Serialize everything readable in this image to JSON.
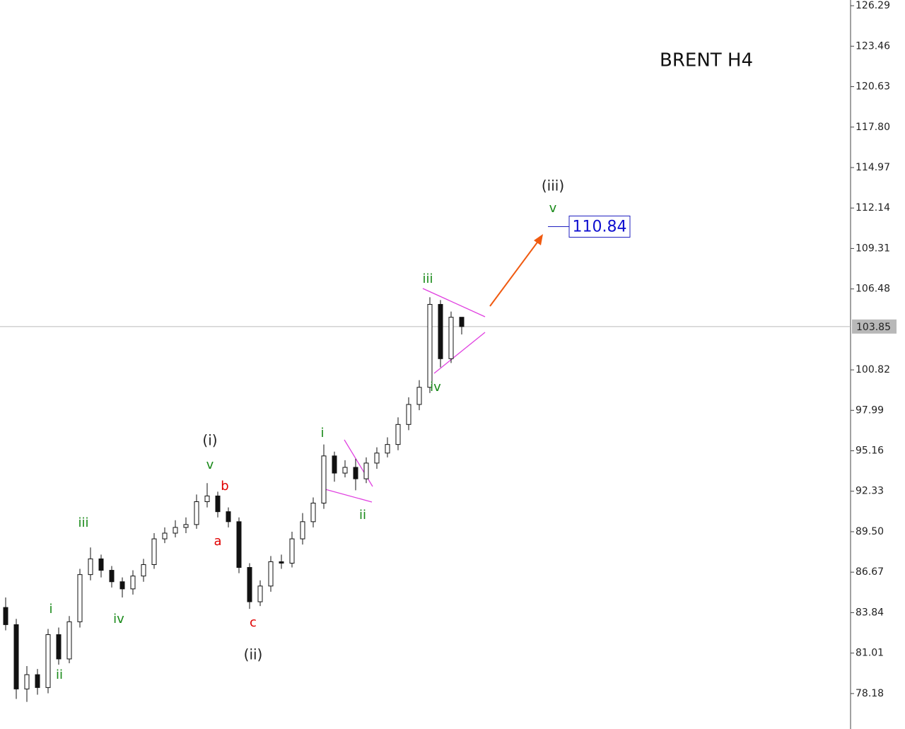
{
  "chart_data": {
    "type": "candlestick",
    "title": "BRENT H4",
    "open": [
      84.2,
      83.0,
      78.5,
      79.5,
      78.6,
      82.3,
      80.6,
      83.2,
      86.5,
      87.6,
      86.8,
      86.0,
      85.5,
      86.4,
      87.2,
      89.0,
      89.4,
      89.8,
      90.0,
      91.6,
      92.0,
      90.9,
      90.2,
      87.0,
      84.6,
      85.7,
      87.4,
      87.3,
      89.0,
      90.2,
      91.5,
      94.8,
      93.6,
      94.0,
      93.2,
      94.3,
      95.0,
      95.6,
      97.0,
      98.4,
      99.6,
      105.4,
      101.6,
      104.5
    ],
    "high": [
      84.9,
      83.4,
      80.1,
      79.9,
      82.7,
      82.8,
      83.6,
      86.9,
      88.4,
      87.9,
      87.1,
      86.3,
      86.8,
      87.6,
      89.4,
      89.8,
      90.3,
      90.5,
      92.1,
      92.9,
      92.3,
      91.2,
      90.5,
      87.3,
      86.1,
      87.8,
      87.9,
      89.5,
      90.8,
      91.9,
      95.6,
      95.1,
      94.5,
      94.6,
      94.7,
      95.4,
      96.1,
      97.5,
      98.9,
      100.1,
      105.9,
      105.7,
      104.9,
      104.2
    ],
    "low": [
      82.6,
      77.8,
      77.6,
      78.1,
      78.2,
      80.2,
      80.3,
      82.8,
      86.1,
      86.3,
      85.6,
      84.9,
      85.1,
      86.0,
      86.9,
      88.7,
      89.1,
      89.4,
      89.7,
      91.2,
      90.5,
      89.8,
      86.6,
      84.1,
      84.3,
      85.3,
      86.9,
      87.0,
      88.6,
      89.8,
      91.1,
      93.0,
      93.3,
      92.4,
      92.9,
      93.9,
      94.7,
      95.2,
      96.6,
      98.0,
      99.2,
      101.0,
      101.3,
      103.3
    ],
    "close": [
      83.0,
      78.5,
      79.5,
      78.6,
      82.3,
      80.6,
      83.2,
      86.5,
      87.6,
      86.8,
      86.0,
      85.5,
      86.4,
      87.2,
      89.0,
      89.4,
      89.8,
      90.0,
      91.6,
      92.0,
      90.9,
      90.2,
      87.0,
      84.6,
      85.7,
      87.4,
      87.3,
      89.0,
      90.2,
      91.5,
      94.8,
      93.6,
      94.0,
      93.2,
      94.3,
      95.0,
      95.6,
      97.0,
      98.4,
      99.6,
      105.4,
      101.6,
      104.5,
      103.85
    ],
    "ylim": [
      75.7,
      126.69
    ],
    "yticks": [
      126.29,
      123.46,
      120.63,
      {
        "value": 117.8,
        "label": "117.80"
      },
      114.97,
      112.14,
      109.31,
      106.48,
      100.82,
      97.99,
      95.16,
      92.33,
      {
        "value": 89.5,
        "label": "89.50"
      },
      86.67,
      83.84,
      81.01,
      78.18
    ],
    "current_price": 103.85,
    "target": 110.84,
    "annotations": [
      {
        "text": "i",
        "color": "#1a8a1a"
      },
      {
        "text": "ii",
        "color": "#1a8a1a"
      },
      {
        "text": "iii",
        "color": "#1a8a1a"
      },
      {
        "text": "iv",
        "color": "#1a8a1a"
      },
      {
        "text": "v",
        "color": "#1a8a1a"
      },
      {
        "text": "i",
        "color": "#1a8a1a"
      },
      {
        "text": "ii",
        "color": "#1a8a1a"
      },
      {
        "text": "iii",
        "color": "#1a8a1a"
      },
      {
        "text": "iv",
        "color": "#1a8a1a"
      },
      {
        "text": "v",
        "color": "#1a8a1a"
      },
      {
        "text": "(i)",
        "color": "#222222"
      },
      {
        "text": "(ii)",
        "color": "#222222"
      },
      {
        "text": "(iii)",
        "color": "#222222"
      },
      {
        "text": "a",
        "color": "#e00000"
      },
      {
        "text": "b",
        "color": "#e00000"
      },
      {
        "text": "c",
        "color": "#e00000"
      }
    ]
  }
}
